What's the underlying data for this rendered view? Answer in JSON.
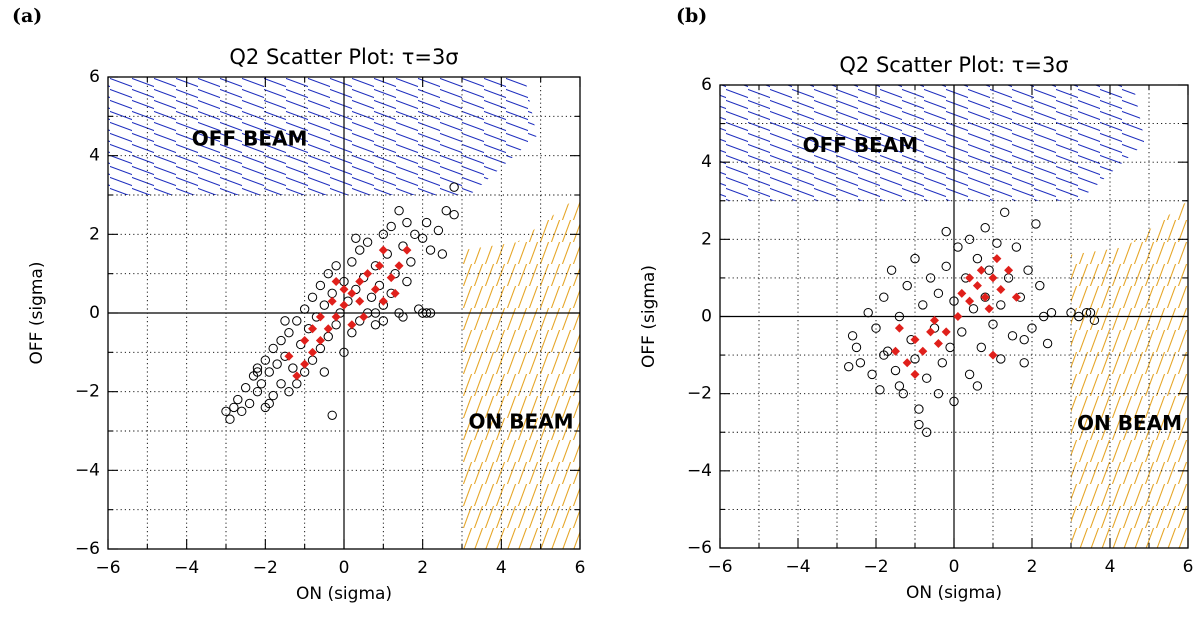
{
  "chart_data": [
    {
      "type": "scatter",
      "panel": "(a)",
      "title": "Q2 Scatter Plot: τ=3σ",
      "xlabel": "ON (sigma)",
      "ylabel": "OFF (sigma)",
      "xlim": [
        -6,
        6
      ],
      "ylim": [
        -6,
        6
      ],
      "xticks": [
        -6,
        -4,
        -2,
        0,
        2,
        4,
        6
      ],
      "yticks": [
        -6,
        -4,
        -2,
        0,
        2,
        4,
        6
      ],
      "xtick_labels": [
        "−6",
        "−4",
        "−2",
        "0",
        "2",
        "4",
        "6"
      ],
      "ytick_labels": [
        "−6",
        "−4",
        "−2",
        "0",
        "2",
        "4",
        "6"
      ],
      "grid": true,
      "threshold": 3,
      "regions": [
        {
          "label": "OFF BEAM",
          "color": "#1f2fbf",
          "x_start": -6,
          "y_start": 3,
          "label_x": -2.4,
          "label_y": 4.4
        },
        {
          "label": "ON BEAM",
          "color": "#e6a72a",
          "x_start": 3,
          "y_start": -6,
          "label_x": 4.5,
          "label_y": -2.8
        }
      ],
      "series": [
        {
          "marker": "open-circle",
          "color": "#000000",
          "points": [
            [
              -3.0,
              -2.5
            ],
            [
              -2.9,
              -2.7
            ],
            [
              -2.8,
              -2.4
            ],
            [
              -2.7,
              -2.2
            ],
            [
              -2.6,
              -2.5
            ],
            [
              -2.5,
              -1.9
            ],
            [
              -2.4,
              -2.3
            ],
            [
              -2.3,
              -1.6
            ],
            [
              -2.2,
              -2.0
            ],
            [
              -2.2,
              -1.4
            ],
            [
              -2.1,
              -1.8
            ],
            [
              -2.0,
              -2.4
            ],
            [
              -2.0,
              -1.2
            ],
            [
              -1.9,
              -1.5
            ],
            [
              -1.8,
              -2.1
            ],
            [
              -1.8,
              -0.9
            ],
            [
              -1.7,
              -1.3
            ],
            [
              -1.6,
              -1.8
            ],
            [
              -1.6,
              -0.7
            ],
            [
              -1.5,
              -1.1
            ],
            [
              -1.4,
              -2.0
            ],
            [
              -1.4,
              -0.5
            ],
            [
              -1.3,
              -1.4
            ],
            [
              -1.2,
              -0.2
            ],
            [
              -1.2,
              -1.8
            ],
            [
              -1.1,
              -0.8
            ],
            [
              -1.0,
              0.1
            ],
            [
              -1.0,
              -1.5
            ],
            [
              -0.9,
              -0.4
            ],
            [
              -0.8,
              0.4
            ],
            [
              -0.8,
              -1.2
            ],
            [
              -0.7,
              -0.1
            ],
            [
              -0.6,
              0.7
            ],
            [
              -0.6,
              -0.9
            ],
            [
              -0.5,
              0.2
            ],
            [
              -0.4,
              1.0
            ],
            [
              -0.4,
              -0.6
            ],
            [
              -0.3,
              0.5
            ],
            [
              -0.2,
              -0.3
            ],
            [
              -0.2,
              1.2
            ],
            [
              -0.1,
              0.0
            ],
            [
              0.0,
              0.8
            ],
            [
              0.0,
              -1.0
            ],
            [
              0.1,
              0.3
            ],
            [
              0.2,
              1.3
            ],
            [
              0.2,
              -0.5
            ],
            [
              0.3,
              0.6
            ],
            [
              0.4,
              1.6
            ],
            [
              0.4,
              -0.2
            ],
            [
              0.5,
              0.9
            ],
            [
              0.6,
              0.0
            ],
            [
              0.6,
              1.8
            ],
            [
              0.7,
              0.4
            ],
            [
              0.8,
              1.2
            ],
            [
              0.8,
              -0.3
            ],
            [
              0.9,
              0.7
            ],
            [
              1.0,
              2.0
            ],
            [
              1.0,
              0.2
            ],
            [
              1.1,
              1.5
            ],
            [
              1.2,
              0.5
            ],
            [
              1.2,
              2.2
            ],
            [
              1.3,
              1.0
            ],
            [
              1.4,
              2.6
            ],
            [
              1.4,
              0.0
            ],
            [
              1.5,
              1.7
            ],
            [
              1.6,
              0.8
            ],
            [
              1.6,
              2.3
            ],
            [
              1.7,
              1.3
            ],
            [
              1.8,
              2.0
            ],
            [
              1.9,
              0.1
            ],
            [
              2.0,
              1.9
            ],
            [
              2.0,
              0.0
            ],
            [
              2.1,
              2.3
            ],
            [
              2.2,
              1.6
            ],
            [
              2.4,
              2.1
            ],
            [
              2.5,
              1.5
            ],
            [
              2.6,
              2.6
            ],
            [
              2.8,
              3.2
            ],
            [
              2.8,
              2.5
            ],
            [
              -2.2,
              -1.5
            ],
            [
              -1.9,
              -2.3
            ],
            [
              -0.3,
              -2.6
            ],
            [
              0.8,
              0.0
            ],
            [
              1.0,
              -0.2
            ],
            [
              2.1,
              0.0
            ],
            [
              2.2,
              0.0
            ],
            [
              1.5,
              -0.1
            ],
            [
              -0.5,
              -1.5
            ],
            [
              0.3,
              1.9
            ],
            [
              -1.5,
              -0.2
            ]
          ]
        },
        {
          "marker": "filled-diamond",
          "color": "#e0201b",
          "points": [
            [
              -1.2,
              -1.6
            ],
            [
              -1.0,
              -1.3
            ],
            [
              -0.8,
              -1.0
            ],
            [
              -1.0,
              -0.7
            ],
            [
              -0.6,
              -0.7
            ],
            [
              -0.8,
              -0.4
            ],
            [
              -0.4,
              -0.4
            ],
            [
              -0.6,
              -0.1
            ],
            [
              -0.2,
              -0.1
            ],
            [
              0.0,
              0.2
            ],
            [
              -0.3,
              0.3
            ],
            [
              0.2,
              0.5
            ],
            [
              0.0,
              0.6
            ],
            [
              0.4,
              0.8
            ],
            [
              0.2,
              -0.3
            ],
            [
              0.6,
              1.0
            ],
            [
              0.4,
              0.3
            ],
            [
              0.8,
              0.6
            ],
            [
              0.9,
              1.2
            ],
            [
              1.0,
              0.3
            ],
            [
              1.2,
              0.9
            ],
            [
              1.0,
              1.6
            ],
            [
              1.4,
              1.2
            ],
            [
              1.6,
              1.6
            ],
            [
              1.3,
              0.5
            ],
            [
              -1.4,
              -1.1
            ],
            [
              0.5,
              -0.1
            ],
            [
              -0.2,
              0.8
            ]
          ]
        }
      ]
    },
    {
      "type": "scatter",
      "panel": "(b)",
      "title": "Q2 Scatter Plot: τ=3σ",
      "xlabel": "ON (sigma)",
      "ylabel": "OFF (sigma)",
      "xlim": [
        -6,
        6
      ],
      "ylim": [
        -6,
        6
      ],
      "xticks": [
        -6,
        -4,
        -2,
        0,
        2,
        4,
        6
      ],
      "yticks": [
        -6,
        -4,
        -2,
        0,
        2,
        4,
        6
      ],
      "xtick_labels": [
        "−6",
        "−4",
        "−2",
        "0",
        "2",
        "4",
        "6"
      ],
      "ytick_labels": [
        "−6",
        "−4",
        "−2",
        "0",
        "2",
        "4",
        "6"
      ],
      "grid": true,
      "threshold": 3,
      "regions": [
        {
          "label": "OFF BEAM",
          "color": "#1f2fbf",
          "x_start": -6,
          "y_start": 3,
          "label_x": -2.4,
          "label_y": 4.4
        },
        {
          "label": "ON BEAM",
          "color": "#e6a72a",
          "x_start": 3,
          "y_start": -6,
          "label_x": 4.5,
          "label_y": -2.8
        }
      ],
      "series": [
        {
          "marker": "open-circle",
          "color": "#000000",
          "points": [
            [
              -2.6,
              -0.5
            ],
            [
              -2.5,
              -0.8
            ],
            [
              -2.4,
              -1.2
            ],
            [
              -2.2,
              0.1
            ],
            [
              -2.1,
              -1.5
            ],
            [
              -2.0,
              -0.3
            ],
            [
              -1.9,
              -1.9
            ],
            [
              -1.8,
              0.5
            ],
            [
              -1.7,
              -0.9
            ],
            [
              -1.6,
              1.2
            ],
            [
              -1.5,
              -1.4
            ],
            [
              -1.4,
              0.0
            ],
            [
              -1.3,
              -2.0
            ],
            [
              -1.2,
              0.8
            ],
            [
              -1.1,
              -0.6
            ],
            [
              -1.0,
              1.5
            ],
            [
              -1.0,
              -1.1
            ],
            [
              -0.9,
              -2.4
            ],
            [
              -0.8,
              0.3
            ],
            [
              -0.7,
              -1.6
            ],
            [
              -0.6,
              1.0
            ],
            [
              -0.5,
              -0.3
            ],
            [
              -0.4,
              -2.0
            ],
            [
              -0.4,
              0.6
            ],
            [
              -0.3,
              -1.2
            ],
            [
              -0.2,
              1.3
            ],
            [
              -0.1,
              -0.8
            ],
            [
              0.0,
              -2.2
            ],
            [
              0.0,
              0.4
            ],
            [
              0.1,
              1.8
            ],
            [
              0.2,
              -0.4
            ],
            [
              0.3,
              1.0
            ],
            [
              0.4,
              -1.5
            ],
            [
              0.4,
              2.0
            ],
            [
              0.5,
              0.2
            ],
            [
              0.6,
              1.5
            ],
            [
              0.7,
              -0.8
            ],
            [
              0.8,
              2.3
            ],
            [
              0.8,
              0.5
            ],
            [
              0.9,
              1.2
            ],
            [
              1.0,
              -0.2
            ],
            [
              1.1,
              1.9
            ],
            [
              1.2,
              0.3
            ],
            [
              1.3,
              2.7
            ],
            [
              1.4,
              1.0
            ],
            [
              1.5,
              -0.5
            ],
            [
              1.6,
              1.8
            ],
            [
              1.7,
              0.5
            ],
            [
              1.8,
              -1.2
            ],
            [
              1.9,
              1.2
            ],
            [
              2.0,
              -0.3
            ],
            [
              2.1,
              2.4
            ],
            [
              2.2,
              0.8
            ],
            [
              2.3,
              0.0
            ],
            [
              2.4,
              -0.7
            ],
            [
              2.5,
              0.1
            ],
            [
              3.0,
              0.1
            ],
            [
              3.2,
              0.0
            ],
            [
              3.4,
              0.1
            ],
            [
              3.6,
              -0.1
            ],
            [
              3.5,
              0.1
            ],
            [
              -0.9,
              -2.8
            ],
            [
              -0.7,
              -3.0
            ],
            [
              -1.4,
              -1.8
            ],
            [
              -2.7,
              -1.3
            ],
            [
              0.6,
              -1.8
            ],
            [
              1.2,
              -1.1
            ],
            [
              -0.2,
              2.2
            ],
            [
              1.8,
              -0.6
            ],
            [
              -1.8,
              -1.0
            ]
          ]
        },
        {
          "marker": "filled-diamond",
          "color": "#e0201b",
          "points": [
            [
              -1.5,
              -0.9
            ],
            [
              -1.2,
              -1.2
            ],
            [
              -1.0,
              -0.6
            ],
            [
              -0.8,
              -0.9
            ],
            [
              -0.6,
              -0.4
            ],
            [
              -0.4,
              -0.7
            ],
            [
              -1.0,
              -1.5
            ],
            [
              -0.5,
              -0.1
            ],
            [
              -0.2,
              -0.4
            ],
            [
              0.4,
              0.4
            ],
            [
              0.6,
              0.8
            ],
            [
              0.8,
              0.5
            ],
            [
              1.0,
              1.0
            ],
            [
              0.7,
              1.2
            ],
            [
              1.2,
              0.7
            ],
            [
              1.4,
              1.2
            ],
            [
              0.9,
              0.2
            ],
            [
              1.6,
              0.5
            ],
            [
              1.1,
              1.5
            ],
            [
              0.4,
              1.0
            ],
            [
              0.2,
              0.6
            ],
            [
              -1.4,
              -0.3
            ],
            [
              0.1,
              0.0
            ],
            [
              1.0,
              -1.0
            ]
          ]
        }
      ]
    }
  ]
}
